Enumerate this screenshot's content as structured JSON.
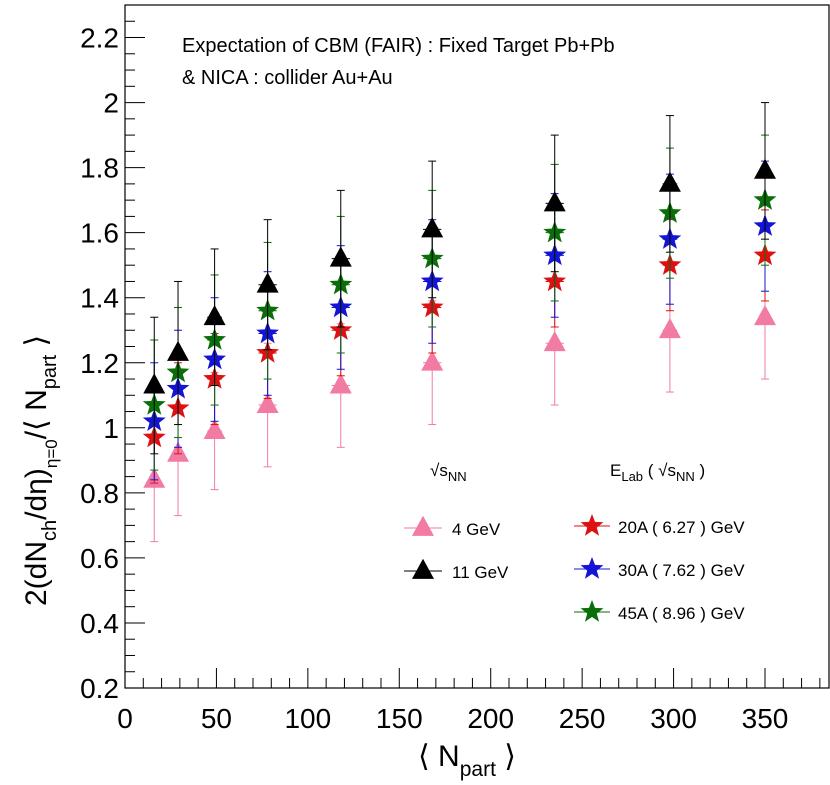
{
  "chart_data": {
    "type": "scatter",
    "annotations": [
      "Expectation of CBM (FAIR) : Fixed Target Pb+Pb",
      "& NICA : collider Au+Au"
    ],
    "xlabel": {
      "pre": "⟨ N",
      "sub": "part",
      "post": " ⟩"
    },
    "ylabel": {
      "p1": "2(dN",
      "s1": "ch",
      "p2": "/dη)",
      "s2": "η=0",
      "p3": "/⟨ N",
      "s3": "part",
      "p4": " ⟩"
    },
    "xlim": [
      0,
      385
    ],
    "ylim": [
      0.2,
      2.3
    ],
    "xticks": [
      0,
      50,
      100,
      150,
      200,
      250,
      300,
      350
    ],
    "yticks": [
      0.2,
      0.4,
      0.6,
      0.8,
      1,
      1.2,
      1.4,
      1.6,
      1.8,
      2,
      2.2
    ],
    "x": [
      16,
      29,
      49,
      78,
      118,
      168,
      235,
      298,
      350
    ],
    "x_err": [
      3,
      3,
      4,
      5,
      5,
      5,
      5,
      4,
      2
    ],
    "series": [
      {
        "name": "4 GeV",
        "marker": "triangle",
        "color": "#f27ba4",
        "values": [
          0.84,
          0.92,
          0.99,
          1.07,
          1.13,
          1.2,
          1.26,
          1.3,
          1.34
        ],
        "errors": [
          0.19,
          0.19,
          0.18,
          0.19,
          0.19,
          0.19,
          0.19,
          0.19,
          0.19
        ]
      },
      {
        "name": "20A ( 6.27 ) GeV",
        "marker": "star",
        "color": "#dd1111",
        "values": [
          0.97,
          1.06,
          1.15,
          1.23,
          1.3,
          1.37,
          1.45,
          1.5,
          1.53
        ],
        "errors": [
          0.14,
          0.14,
          0.14,
          0.14,
          0.14,
          0.14,
          0.14,
          0.14,
          0.14
        ]
      },
      {
        "name": "30A ( 7.62 ) GeV",
        "marker": "star",
        "color": "#1414d4",
        "values": [
          1.02,
          1.12,
          1.21,
          1.29,
          1.37,
          1.45,
          1.53,
          1.58,
          1.62
        ],
        "errors": [
          0.18,
          0.18,
          0.19,
          0.19,
          0.19,
          0.19,
          0.19,
          0.2,
          0.2
        ]
      },
      {
        "name": "45A ( 8.96 ) GeV",
        "marker": "star",
        "color": "#0a6e0a",
        "values": [
          1.07,
          1.17,
          1.27,
          1.36,
          1.44,
          1.52,
          1.6,
          1.66,
          1.7
        ],
        "errors": [
          0.2,
          0.2,
          0.2,
          0.21,
          0.21,
          0.21,
          0.21,
          0.2,
          0.2
        ]
      },
      {
        "name": "11 GeV",
        "marker": "triangle",
        "color": "#000000",
        "values": [
          1.13,
          1.23,
          1.34,
          1.44,
          1.52,
          1.61,
          1.69,
          1.75,
          1.79
        ],
        "errors": [
          0.21,
          0.22,
          0.21,
          0.2,
          0.21,
          0.21,
          0.21,
          0.21,
          0.21
        ]
      }
    ],
    "legend": {
      "header_left": {
        "pre": "√",
        "main": "s",
        "sub": "NN"
      },
      "header_right": {
        "e": "E",
        "esub": "Lab",
        "mid": " ( √",
        "s": "s",
        "ssub": "NN",
        "end": " )"
      },
      "left_entries": [
        "4 GeV",
        "11 GeV"
      ],
      "right_entries": [
        "20A ( 6.27 ) GeV",
        "30A ( 7.62 ) GeV",
        "45A ( 8.96 ) GeV"
      ]
    },
    "grid": false
  }
}
